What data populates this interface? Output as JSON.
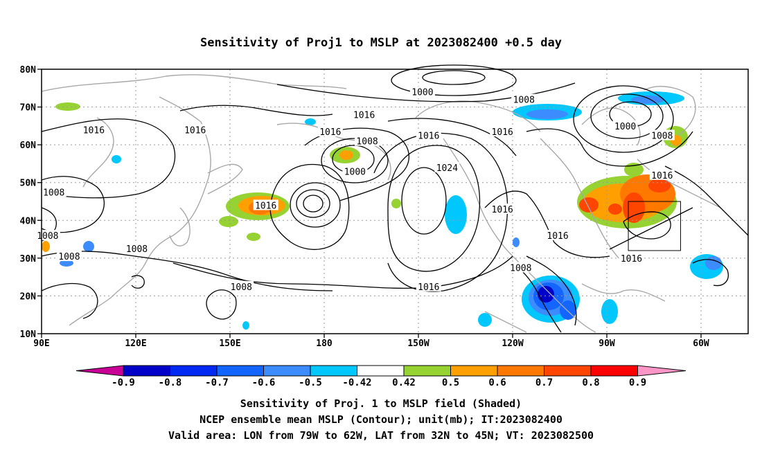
{
  "title": "Sensitivity of Proj1 to MSLP at 2023082400 +0.5 day",
  "lat_labels": [
    "80N",
    "70N",
    "60N",
    "50N",
    "40N",
    "30N",
    "20N",
    "10N"
  ],
  "lon_labels": [
    "90E",
    "120E",
    "150E",
    "180",
    "150W",
    "120W",
    "90W",
    "60W"
  ],
  "contour_labels": [
    {
      "text": "1000",
      "lon": 214,
      "lat": 74
    },
    {
      "text": "1008",
      "lon": 247,
      "lat": 72
    },
    {
      "text": "1016",
      "lon": 195,
      "lat": 68
    },
    {
      "text": "1016",
      "lon": 240,
      "lat": 63.5
    },
    {
      "text": "1000",
      "lon": 280,
      "lat": 65
    },
    {
      "text": "1008",
      "lon": 292,
      "lat": 62.5
    },
    {
      "text": "1016",
      "lon": 107,
      "lat": 64
    },
    {
      "text": "1016",
      "lon": 140,
      "lat": 64
    },
    {
      "text": "1016",
      "lon": 184,
      "lat": 63.5
    },
    {
      "text": "1008",
      "lon": 196,
      "lat": 61
    },
    {
      "text": "1016",
      "lon": 216,
      "lat": 62.5
    },
    {
      "text": "1000",
      "lon": 192,
      "lat": 53
    },
    {
      "text": "1024",
      "lon": 222,
      "lat": 54
    },
    {
      "text": "1016",
      "lon": 292,
      "lat": 52
    },
    {
      "text": "1008",
      "lon": 94,
      "lat": 47.5
    },
    {
      "text": "1016",
      "lon": 163,
      "lat": 44
    },
    {
      "text": "1016",
      "lon": 240,
      "lat": 43
    },
    {
      "text": "1016",
      "lon": 258,
      "lat": 36
    },
    {
      "text": "1008",
      "lon": 92,
      "lat": 36
    },
    {
      "text": "1008",
      "lon": 99,
      "lat": 30.5
    },
    {
      "text": "1008",
      "lon": 121,
      "lat": 32.5
    },
    {
      "text": "1016",
      "lon": 282,
      "lat": 30
    },
    {
      "text": "1008",
      "lon": 246,
      "lat": 27.5
    },
    {
      "text": "1008",
      "lon": 155,
      "lat": 22.5
    },
    {
      "text": "1016",
      "lon": 216,
      "lat": 22.5
    }
  ],
  "colorbar": {
    "ticks": [
      "-0.9",
      "-0.8",
      "-0.7",
      "-0.6",
      "-0.5",
      "-0.42",
      "0.42",
      "0.5",
      "0.6",
      "0.7",
      "0.8",
      "0.9"
    ],
    "colors": [
      "#c80096",
      "#0000c8",
      "#0028f0",
      "#1464ff",
      "#3c8cff",
      "#00c8ff",
      "#ffffff",
      "#96d232",
      "#ffa000",
      "#ff7800",
      "#ff4600",
      "#ff0000",
      "#ff96c8"
    ]
  },
  "captions": [
    "Sensitivity of Proj. 1 to MSLP field (Shaded)",
    "NCEP ensemble mean MSLP (Contour); unit(mb); IT:2023082400",
    "Valid area: LON from 79W to 62W, LAT from 32N to 45N; VT: 2023082500"
  ],
  "valid_area": {
    "lon_min": 281,
    "lon_max": 298,
    "lat_min": 32,
    "lat_max": 45
  }
}
